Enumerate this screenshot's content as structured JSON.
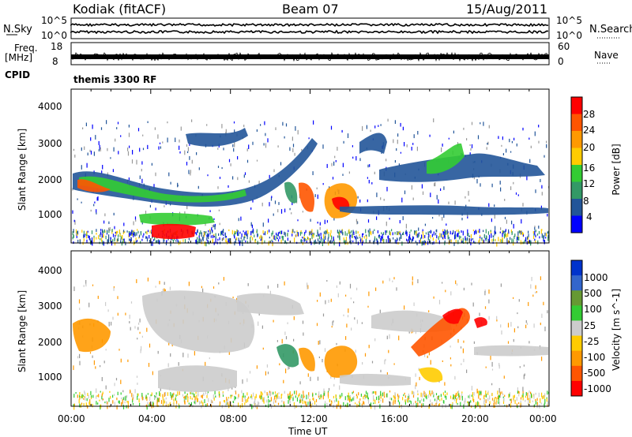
{
  "header": {
    "station": "Kodiak (fitACF)",
    "beam": "Beam 07",
    "date": "15/Aug/2011"
  },
  "summary": {
    "nsky_label": "N.Sky",
    "nsearch_label": "N.Search",
    "nsky_ticks": [
      "10^5",
      "10^0"
    ],
    "nsearch_ticks": [
      "10^5",
      "10^0"
    ],
    "freq_label": "Freq.",
    "freq_unit": "[MHz]",
    "freq_ticks": [
      "18",
      "8"
    ],
    "nave_label": "Nave",
    "nave_ticks": [
      "60",
      "0"
    ],
    "cpid_label": "CPID",
    "cpid_value": "themis 3300 RF"
  },
  "chart_data": [
    {
      "type": "heatmap",
      "ylabel": "Slant Range [km]",
      "xlabel": "",
      "xlim": [
        "00:00",
        "00:00"
      ],
      "ylim": [
        200,
        4600
      ],
      "yticks": [
        "4000",
        "3000",
        "2000",
        "1000"
      ],
      "colorbar": {
        "label": "Power [dB]",
        "ticks": [
          "28",
          "24",
          "20",
          "16",
          "12",
          "8",
          "4"
        ],
        "colors": [
          "#ff0000",
          "#ff5500",
          "#ff9900",
          "#ffcc00",
          "#33cc33",
          "#339966",
          "#225599",
          "#0000ff"
        ]
      }
    },
    {
      "type": "heatmap",
      "ylabel": "Slant Range [km]",
      "xlabel": "Time UT",
      "xticks": [
        "00:00",
        "04:00",
        "08:00",
        "12:00",
        "16:00",
        "20:00",
        "00:00"
      ],
      "ylim": [
        200,
        4600
      ],
      "yticks": [
        "4000",
        "3000",
        "2000",
        "1000"
      ],
      "colorbar": {
        "label": "Velocity [m s^-1]",
        "ticks": [
          "1000",
          "500",
          "100",
          "25",
          "-25",
          "-100",
          "-500",
          "-1000"
        ],
        "colors": [
          "#0033cc",
          "#3366cc",
          "#669933",
          "#33cc33",
          "#cccccc",
          "#ffcc00",
          "#ff9900",
          "#ff5500",
          "#ff0000"
        ]
      }
    }
  ]
}
